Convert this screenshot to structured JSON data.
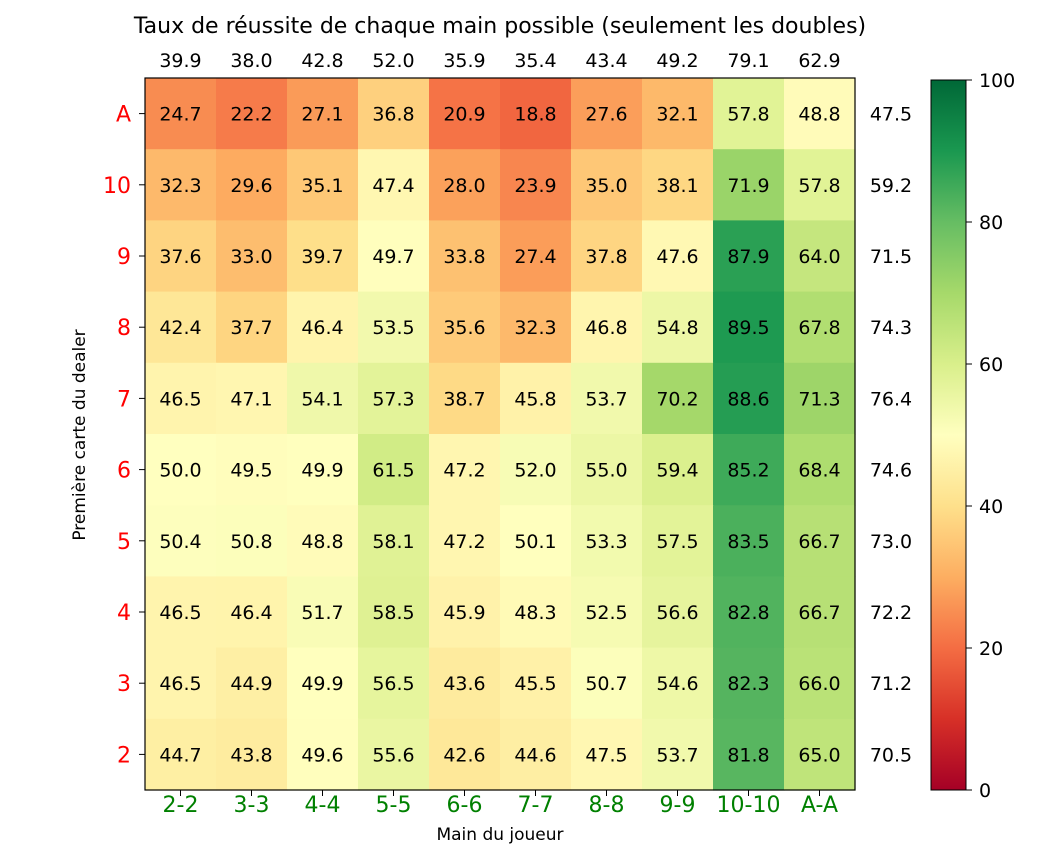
{
  "chart_data": {
    "type": "heatmap",
    "title": "Taux de réussite de chaque main possible (seulement les doubles)",
    "xlabel": "Main du joueur",
    "ylabel": "Première carte du dealer",
    "x_categories": [
      "2-2",
      "3-3",
      "4-4",
      "5-5",
      "6-6",
      "7-7",
      "8-8",
      "9-9",
      "10-10",
      "A-A"
    ],
    "y_categories": [
      "A",
      "10",
      "9",
      "8",
      "7",
      "6",
      "5",
      "4",
      "3",
      "2"
    ],
    "values": [
      [
        24.7,
        22.2,
        27.1,
        36.8,
        20.9,
        18.8,
        27.6,
        32.1,
        57.8,
        48.8
      ],
      [
        32.3,
        29.6,
        35.1,
        47.4,
        28.0,
        23.9,
        35.0,
        38.1,
        71.9,
        57.8
      ],
      [
        37.6,
        33.0,
        39.7,
        49.7,
        33.8,
        27.4,
        37.8,
        47.6,
        87.9,
        64.0
      ],
      [
        42.4,
        37.7,
        46.4,
        53.5,
        35.6,
        32.3,
        46.8,
        54.8,
        89.5,
        67.8
      ],
      [
        46.5,
        47.1,
        54.1,
        57.3,
        38.7,
        45.8,
        53.7,
        70.2,
        88.6,
        71.3
      ],
      [
        50.0,
        49.5,
        49.9,
        61.5,
        47.2,
        52.0,
        55.0,
        59.4,
        85.2,
        68.4
      ],
      [
        50.4,
        50.8,
        48.8,
        58.1,
        47.2,
        50.1,
        53.3,
        57.5,
        83.5,
        66.7
      ],
      [
        46.5,
        46.4,
        51.7,
        58.5,
        45.9,
        48.3,
        52.5,
        56.6,
        82.8,
        66.7
      ],
      [
        46.5,
        44.9,
        49.9,
        56.5,
        43.6,
        45.5,
        50.7,
        54.6,
        82.3,
        66.0
      ],
      [
        44.7,
        43.8,
        49.6,
        55.6,
        42.6,
        44.6,
        47.5,
        53.7,
        81.8,
        65.0
      ]
    ],
    "column_totals": [
      39.9,
      38.0,
      42.8,
      52.0,
      35.9,
      35.4,
      43.4,
      49.2,
      79.1,
      62.9
    ],
    "row_totals": [
      47.5,
      59.2,
      71.5,
      74.3,
      76.4,
      74.6,
      73.0,
      72.2,
      71.2,
      70.5
    ],
    "colorbar": {
      "range": [
        0,
        100
      ],
      "ticks": [
        0,
        20,
        40,
        60,
        80,
        100
      ],
      "colormap": "RdYlGn"
    },
    "x_tick_color": "#008000",
    "y_tick_color": "#ff0000"
  }
}
